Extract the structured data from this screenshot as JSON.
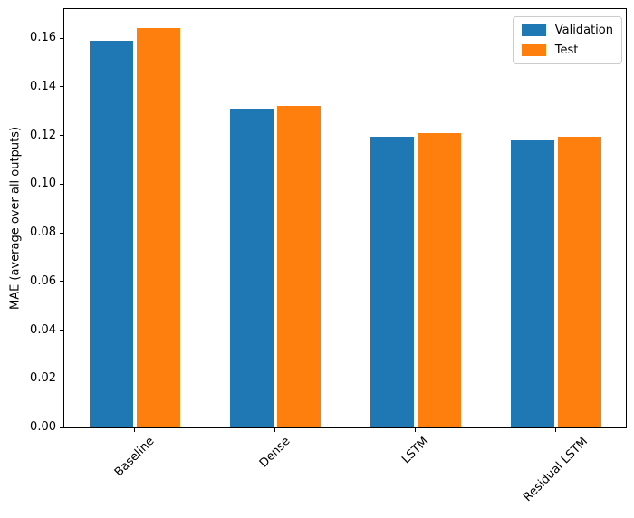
{
  "chart_data": {
    "type": "bar",
    "title": "",
    "categories": [
      "Baseline",
      "Dense",
      "LSTM",
      "Residual LSTM"
    ],
    "series": [
      {
        "name": "Validation",
        "color": "#1f77b4",
        "values": [
          0.159,
          0.131,
          0.1195,
          0.118
        ]
      },
      {
        "name": "Test",
        "color": "#ff7f0e",
        "values": [
          0.164,
          0.132,
          0.121,
          0.1195
        ]
      }
    ],
    "xlabel": "",
    "ylabel": "MAE (average over all outputs)",
    "ylim": [
      0,
      0.172
    ],
    "yticks": [
      0.0,
      0.02,
      0.04,
      0.06,
      0.08,
      0.1,
      0.12,
      0.14,
      0.16
    ],
    "ytick_decimals": 2,
    "xtick_rotation_deg": 45,
    "grid": false,
    "legend": {
      "position": "upper right",
      "entries": [
        "Validation",
        "Test"
      ]
    },
    "colors": {
      "spine": "#000000",
      "background": "#ffffff",
      "legend_border": "#cccccc"
    }
  }
}
